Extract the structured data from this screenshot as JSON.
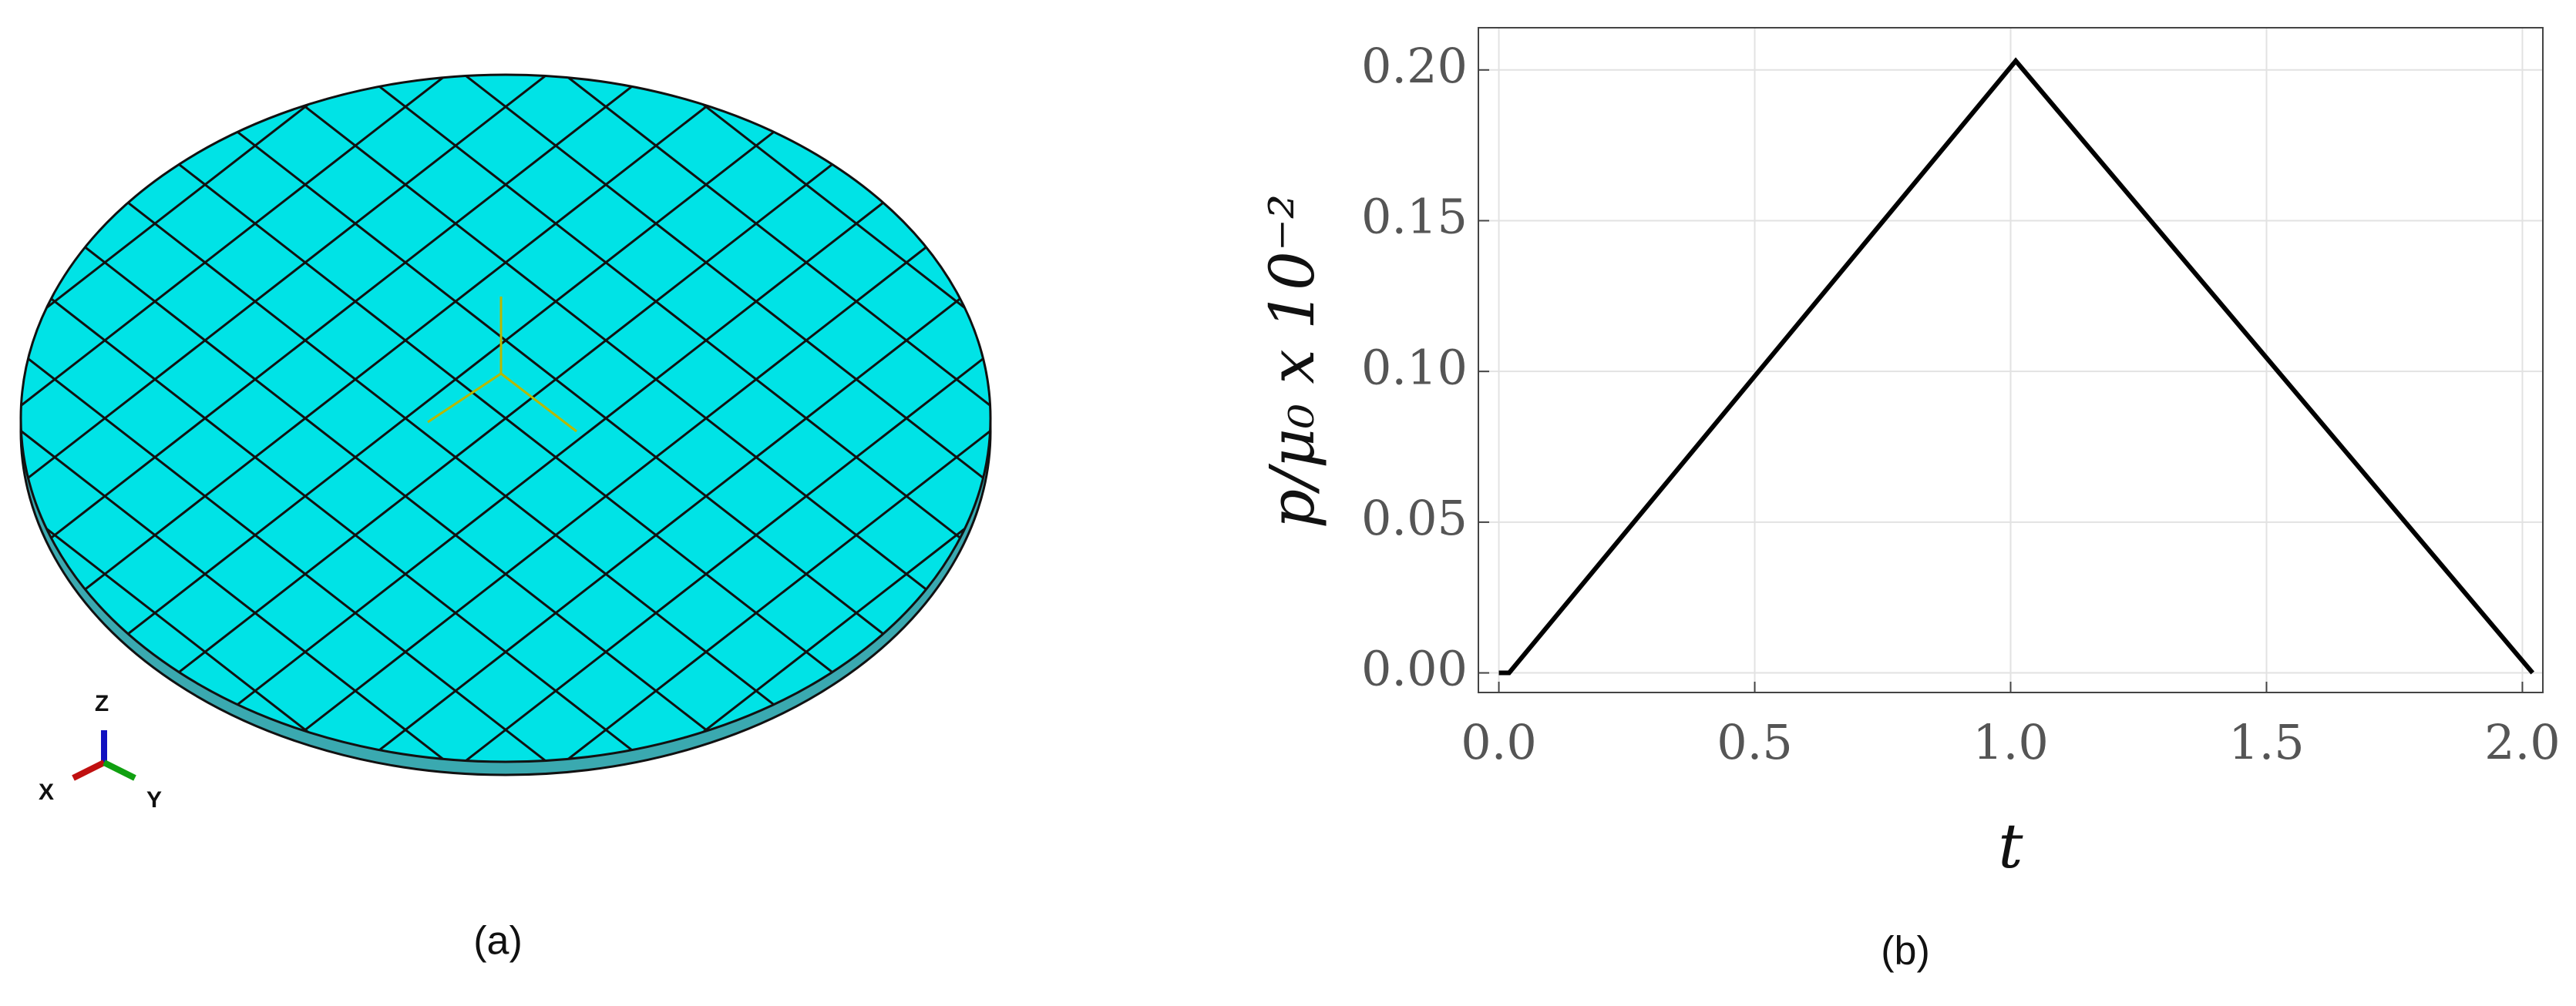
{
  "figure": {
    "panel_labels": [
      "(a)",
      "(b)"
    ],
    "triad_labels": [
      "Z",
      "X",
      "Y"
    ]
  },
  "chart_data": {
    "type": "line",
    "x": [
      0,
      0.02,
      1.01,
      2.02
    ],
    "values": [
      0,
      0,
      0.203,
      0
    ],
    "color": "#000000",
    "xlabel": "t",
    "ylabel": "p/μ₀ x 10⁻²",
    "xlim": [
      -0.04,
      2.04
    ],
    "ylim": [
      -0.0065,
      0.214
    ],
    "xticks": [
      {
        "value": 0,
        "label": "0.0"
      },
      {
        "value": 0.5,
        "label": "0.5"
      },
      {
        "value": 1,
        "label": "1.0"
      },
      {
        "value": 1.5,
        "label": "1.5"
      },
      {
        "value": 2,
        "label": "2.0"
      }
    ],
    "yticks": [
      {
        "value": 0,
        "label": "0.00"
      },
      {
        "value": 0.05,
        "label": "0.05"
      },
      {
        "value": 0.1,
        "label": "0.10"
      },
      {
        "value": 0.15,
        "label": "0.15"
      },
      {
        "value": 0.2,
        "label": "0.20"
      }
    ],
    "grid": true
  }
}
